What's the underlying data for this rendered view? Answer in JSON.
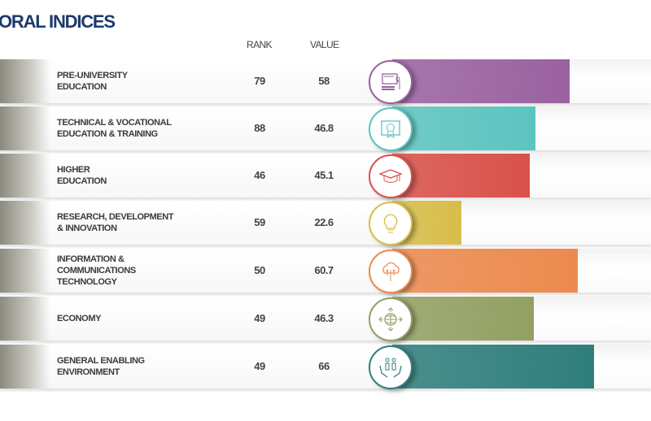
{
  "title": "ORAL INDICES",
  "headers": {
    "rank": "RANK",
    "value": "VALUE"
  },
  "chart_data": {
    "type": "bar",
    "title": "ORAL INDICES",
    "categories": [
      "PRE-UNIVERSITY\nEDUCATION",
      "TECHNICAL & VOCATIONAL\n EDUCATION & TRAINING",
      "HIGHER\nEDUCATION",
      "RESEARCH, DEVELOPMENT\n& INNOVATION",
      "INFORMATION &\nCOMMUNICATIONS\nTECHNOLOGY",
      "ECONOMY",
      "GENERAL ENABLING\nENVIRONMENT"
    ],
    "ranks": [
      "79",
      "88",
      "46",
      "59",
      "50",
      "49",
      "49"
    ],
    "values": [
      58,
      46.8,
      45.1,
      22.6,
      60.7,
      46.3,
      66
    ],
    "value_labels": [
      "58",
      "46.8",
      "45.1",
      "22.6",
      "60.7",
      "46.3",
      "66"
    ],
    "colors": [
      "#9a62a0",
      "#5cc4c0",
      "#d9514a",
      "#d8bd4a",
      "#ec8a4e",
      "#93a063",
      "#2f7e7c"
    ],
    "icons": [
      "classroom-icon",
      "certificate-icon",
      "graduation-cap-icon",
      "lightbulb-icon",
      "cloud-circuit-icon",
      "globe-arrows-icon",
      "hands-people-icon"
    ],
    "ylim": [
      0,
      100
    ]
  }
}
